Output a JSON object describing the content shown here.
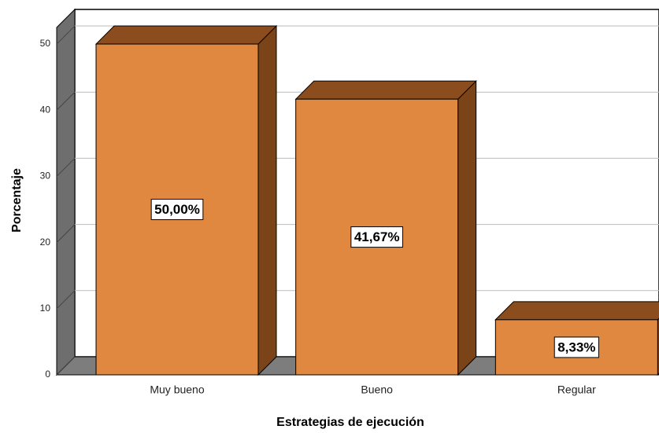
{
  "chart_data": {
    "type": "bar3d",
    "x_label": "Estrategias de ejecución",
    "y_label": "Porcentaje",
    "categories": [
      "Muy bueno",
      "Bueno",
      "Regular"
    ],
    "values": [
      50,
      41.67,
      8.33
    ],
    "value_labels": [
      "50,00%",
      "41,67%",
      "8,33%"
    ],
    "color": "#e08840",
    "ylim": [
      0,
      52.5
    ],
    "yticks": [
      0,
      10,
      20,
      30,
      40,
      50
    ],
    "grid": true
  }
}
